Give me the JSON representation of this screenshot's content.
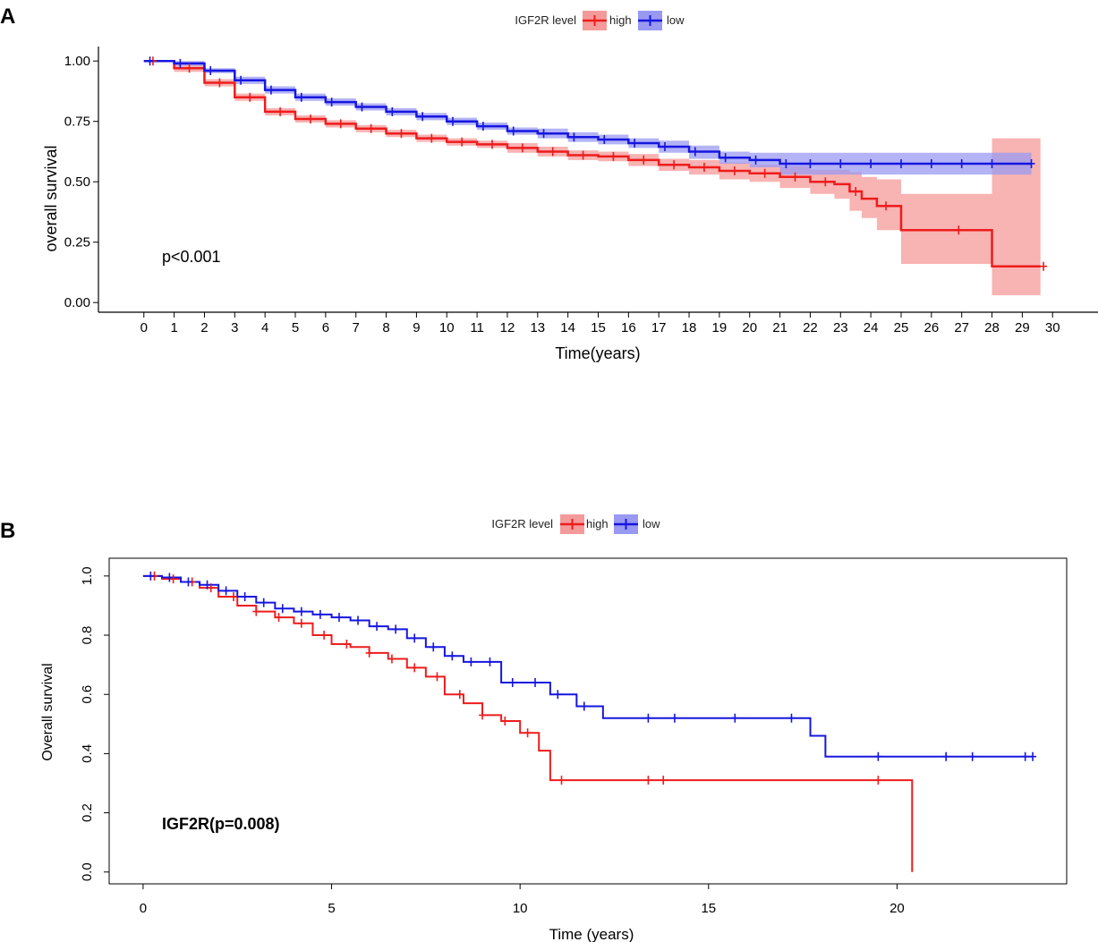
{
  "chart_data": [
    {
      "panel_label": "A",
      "type": "line",
      "subtype": "kaplan-meier",
      "xlabel": "Time(years)",
      "ylabel": "overall survival",
      "xlim": [
        -1.5,
        31.5
      ],
      "ylim": [
        -0.04,
        1.06
      ],
      "x_ticks": [
        0,
        1,
        2,
        3,
        4,
        5,
        6,
        7,
        8,
        9,
        10,
        11,
        12,
        13,
        14,
        15,
        16,
        17,
        18,
        19,
        20,
        21,
        22,
        23,
        24,
        25,
        26,
        27,
        28,
        29,
        30
      ],
      "y_ticks": [
        0,
        0.25,
        0.5,
        0.75,
        1.0
      ],
      "y_tick_labels": [
        "0.00",
        "0.25",
        "0.50",
        "0.75",
        "1.00"
      ],
      "annotation": "p<0.001",
      "legend": {
        "title": "IGF2R level",
        "placement": "top-center"
      },
      "series": [
        {
          "name": "high",
          "color": "#ee1c1c",
          "band_color": "#f59a9a",
          "x": [
            0,
            1,
            2,
            3,
            4,
            5,
            6,
            7,
            8,
            9,
            10,
            11,
            12,
            13,
            14,
            15,
            16,
            17,
            18,
            19,
            20,
            21,
            22,
            22.8,
            23.3,
            23.7,
            24.2,
            25.0,
            28.0,
            29.6
          ],
          "y": [
            1.0,
            0.97,
            0.91,
            0.85,
            0.79,
            0.76,
            0.74,
            0.72,
            0.7,
            0.68,
            0.665,
            0.655,
            0.64,
            0.625,
            0.61,
            0.605,
            0.59,
            0.57,
            0.56,
            0.545,
            0.535,
            0.52,
            0.5,
            0.49,
            0.46,
            0.43,
            0.4,
            0.3,
            0.15,
            0.15
          ],
          "ci_lower": [
            1.0,
            0.955,
            0.895,
            0.835,
            0.775,
            0.745,
            0.725,
            0.705,
            0.685,
            0.665,
            0.65,
            0.64,
            0.62,
            0.605,
            0.59,
            0.585,
            0.565,
            0.545,
            0.53,
            0.51,
            0.5,
            0.475,
            0.45,
            0.43,
            0.38,
            0.35,
            0.3,
            0.16,
            0.03,
            0.03
          ],
          "ci_upper": [
            1.0,
            0.985,
            0.925,
            0.865,
            0.805,
            0.775,
            0.755,
            0.735,
            0.715,
            0.695,
            0.68,
            0.67,
            0.66,
            0.645,
            0.63,
            0.625,
            0.615,
            0.595,
            0.59,
            0.58,
            0.57,
            0.565,
            0.55,
            0.55,
            0.54,
            0.52,
            0.51,
            0.45,
            0.68,
            0.68
          ],
          "censor_x": [
            0.3,
            1.5,
            2.5,
            3.5,
            4.5,
            5.5,
            6.5,
            7.5,
            8.5,
            9.5,
            10.5,
            11.5,
            12.5,
            13.5,
            14.5,
            15.5,
            16.5,
            17.5,
            18.5,
            19.5,
            20.5,
            21.5,
            22.5,
            23.5,
            24.5,
            26.9,
            29.7
          ]
        },
        {
          "name": "low",
          "color": "#1616e0",
          "band_color": "#9999f2",
          "x": [
            0,
            1,
            2,
            3,
            4,
            5,
            6,
            7,
            8,
            9,
            10,
            11,
            12,
            13,
            14,
            15,
            16,
            17,
            18,
            19,
            20,
            21,
            22,
            25,
            29.3
          ],
          "y": [
            1.0,
            0.99,
            0.96,
            0.92,
            0.88,
            0.85,
            0.83,
            0.81,
            0.79,
            0.77,
            0.75,
            0.73,
            0.71,
            0.7,
            0.685,
            0.675,
            0.66,
            0.645,
            0.625,
            0.6,
            0.59,
            0.575,
            0.575,
            0.575,
            0.575
          ],
          "ci_lower": [
            1.0,
            0.98,
            0.95,
            0.905,
            0.865,
            0.835,
            0.815,
            0.795,
            0.775,
            0.755,
            0.735,
            0.715,
            0.695,
            0.68,
            0.665,
            0.655,
            0.64,
            0.62,
            0.595,
            0.575,
            0.56,
            0.53,
            0.53,
            0.53,
            0.53
          ],
          "ci_upper": [
            1.0,
            1.0,
            0.97,
            0.935,
            0.895,
            0.865,
            0.845,
            0.825,
            0.805,
            0.785,
            0.765,
            0.745,
            0.725,
            0.72,
            0.705,
            0.695,
            0.68,
            0.67,
            0.65,
            0.625,
            0.62,
            0.62,
            0.62,
            0.62,
            0.62
          ],
          "censor_x": [
            0.2,
            1.2,
            2.2,
            3.2,
            4.2,
            5.2,
            6.2,
            7.2,
            8.2,
            9.2,
            10.2,
            11.2,
            12.2,
            13.2,
            14.2,
            15.2,
            16.2,
            17.2,
            18.2,
            19.2,
            20.2,
            21.2,
            22.0,
            23.0,
            24.0,
            25.0,
            26.0,
            27.0,
            28.0,
            29.3
          ]
        }
      ]
    },
    {
      "panel_label": "B",
      "type": "line",
      "subtype": "kaplan-meier",
      "xlabel": "Time (years)",
      "ylabel": "Overall survival",
      "xlim": [
        -0.9,
        24.5
      ],
      "ylim": [
        -0.04,
        1.06
      ],
      "x_ticks": [
        0,
        5,
        10,
        15,
        20
      ],
      "y_ticks": [
        0,
        0.2,
        0.4,
        0.6,
        0.8,
        1.0
      ],
      "y_tick_labels": [
        "0.0",
        "0.2",
        "0.4",
        "0.6",
        "0.8",
        "1.0"
      ],
      "annotation": "IGF2R(p=0.008)",
      "legend": {
        "title": "IGF2R level",
        "placement": "top-center"
      },
      "series": [
        {
          "name": "high",
          "color": "#ee1c1c",
          "x": [
            0,
            0.5,
            1.0,
            1.5,
            2.0,
            2.5,
            3.0,
            3.5,
            4.0,
            4.5,
            5.0,
            5.5,
            6.0,
            6.5,
            7.0,
            7.5,
            8.0,
            8.5,
            9.0,
            9.5,
            10.0,
            10.5,
            10.8,
            20.4,
            20.4
          ],
          "y": [
            1.0,
            0.99,
            0.98,
            0.96,
            0.93,
            0.9,
            0.88,
            0.86,
            0.84,
            0.8,
            0.77,
            0.76,
            0.74,
            0.72,
            0.69,
            0.66,
            0.6,
            0.57,
            0.53,
            0.51,
            0.47,
            0.41,
            0.31,
            0.31,
            0.0
          ],
          "censor_x": [
            0.3,
            0.8,
            1.3,
            1.8,
            2.4,
            3.0,
            3.6,
            4.2,
            4.8,
            5.4,
            6.0,
            6.6,
            7.2,
            7.8,
            8.4,
            9.0,
            9.6,
            10.2,
            11.1,
            13.4,
            13.8,
            19.5
          ]
        },
        {
          "name": "low",
          "color": "#1616e0",
          "x": [
            0,
            0.5,
            1.0,
            1.5,
            2.0,
            2.5,
            3.0,
            3.5,
            4.0,
            4.5,
            5.0,
            5.5,
            6.0,
            6.5,
            7.0,
            7.5,
            8.0,
            8.5,
            9.0,
            9.5,
            10.0,
            10.8,
            11.5,
            12.2,
            17.7,
            18.1,
            23.6
          ],
          "y": [
            1.0,
            0.995,
            0.98,
            0.97,
            0.95,
            0.93,
            0.91,
            0.89,
            0.88,
            0.87,
            0.86,
            0.85,
            0.83,
            0.82,
            0.79,
            0.76,
            0.73,
            0.71,
            0.71,
            0.64,
            0.64,
            0.6,
            0.56,
            0.52,
            0.46,
            0.39,
            0.39
          ],
          "censor_x": [
            0.2,
            0.7,
            1.2,
            1.7,
            2.2,
            2.7,
            3.2,
            3.7,
            4.2,
            4.7,
            5.2,
            5.7,
            6.2,
            6.7,
            7.2,
            7.7,
            8.2,
            8.7,
            9.2,
            9.8,
            10.4,
            11.0,
            11.7,
            13.4,
            14.1,
            15.7,
            17.2,
            19.5,
            21.3,
            22.0,
            23.4,
            23.6
          ]
        }
      ]
    }
  ]
}
